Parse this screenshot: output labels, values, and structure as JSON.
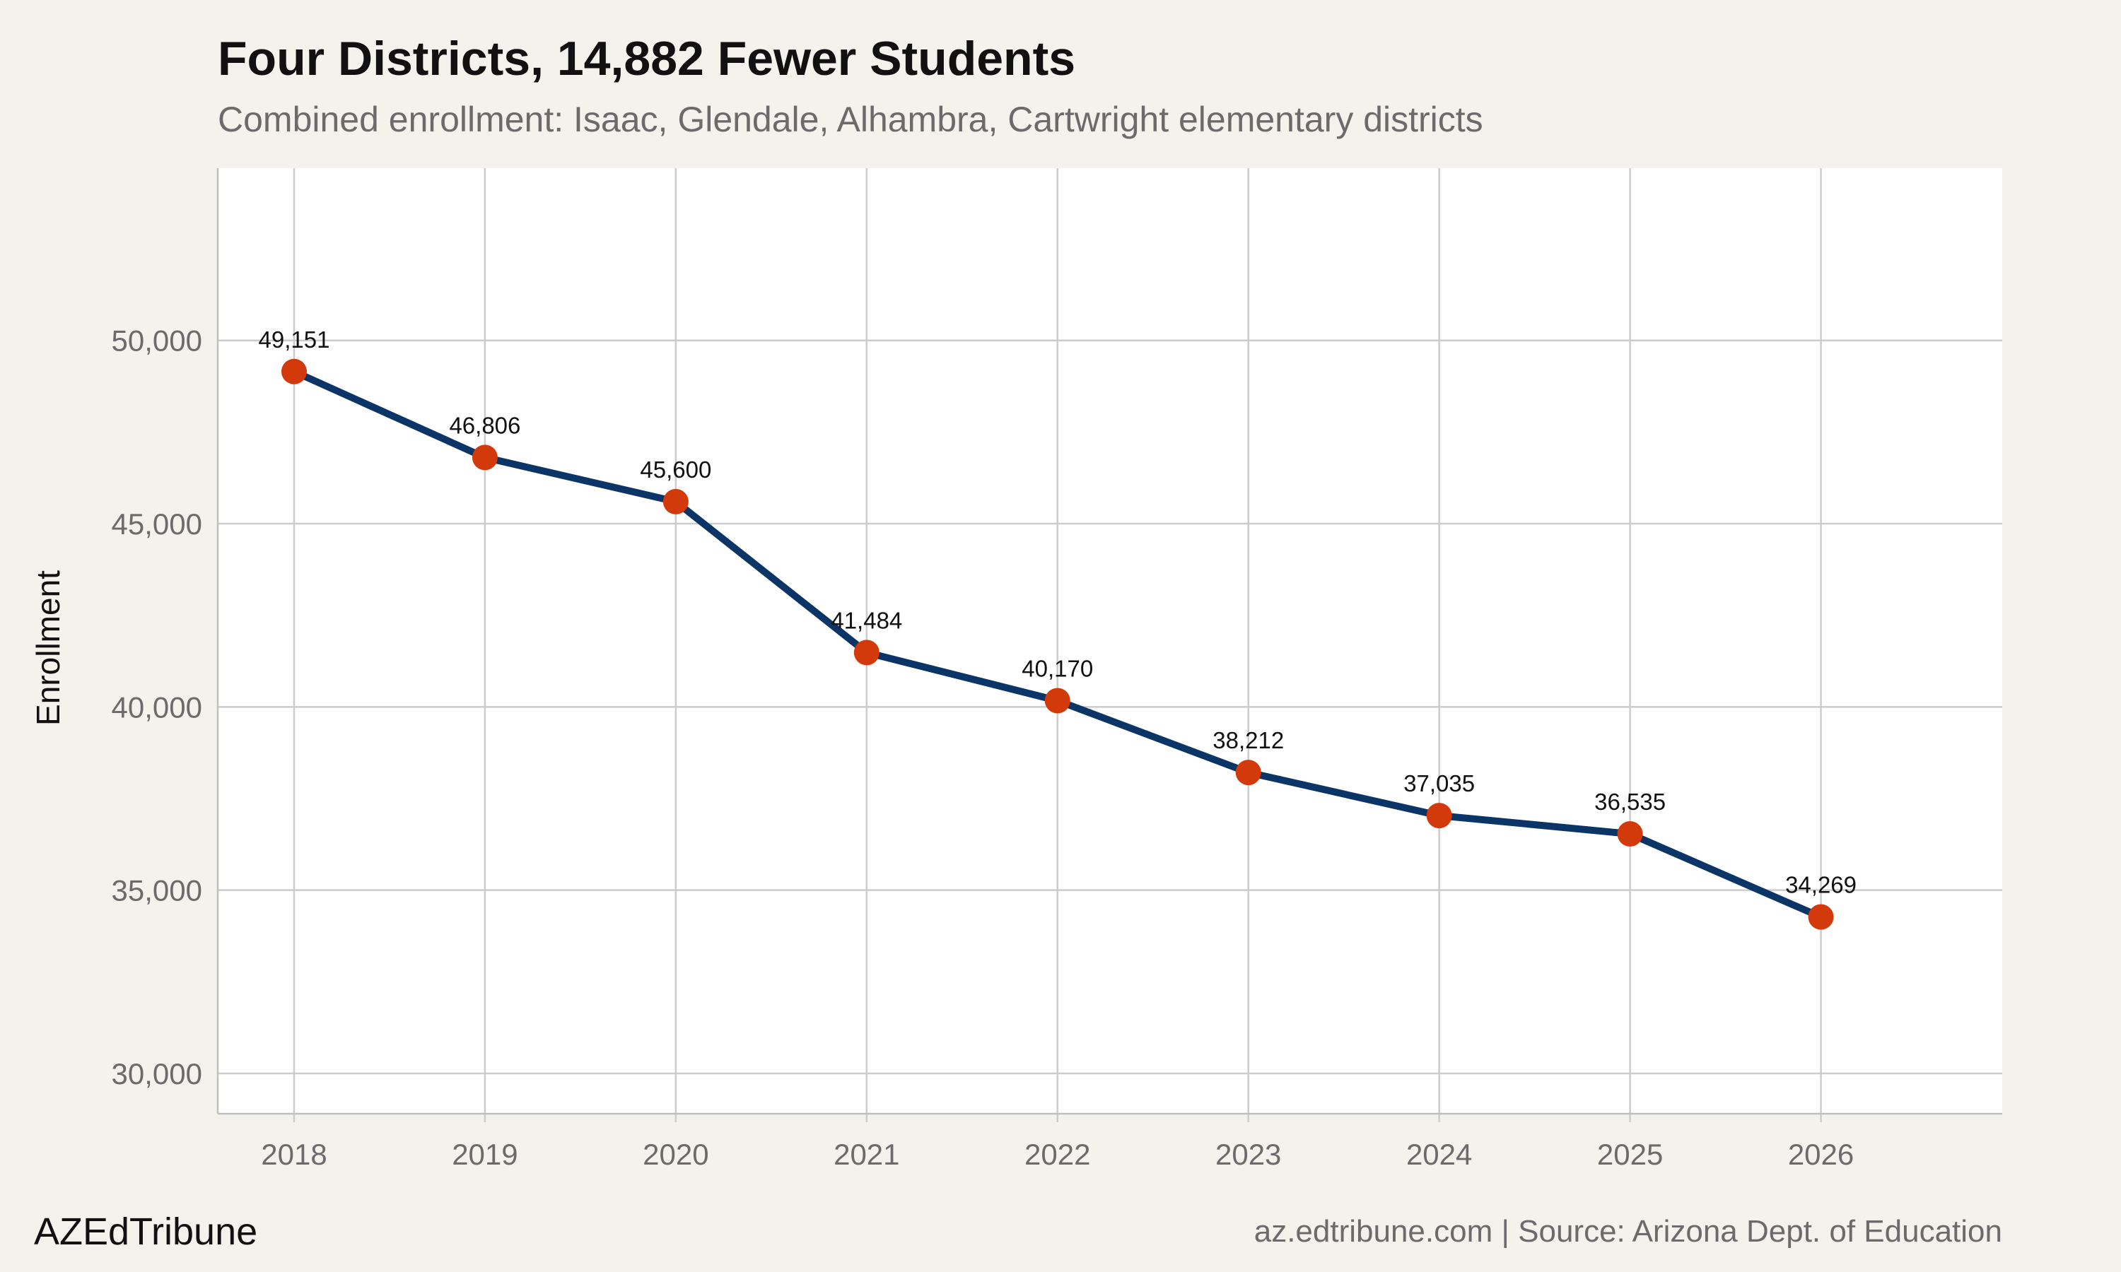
{
  "header": {
    "title": "Four Districts, 14,882 Fewer Students",
    "subtitle": "Combined enrollment: Isaac, Glendale, Alhambra, Cartwright elementary districts"
  },
  "footer": {
    "brand": "AZEdTribune",
    "source": "az.edtribune.com | Source: Arizona Dept. of Education"
  },
  "colors": {
    "background": "#f4f2ed",
    "plot_background": "#ffffff",
    "grid": "#cccccc",
    "line": "#0b3566",
    "marker": "#d23a0c"
  },
  "chart_data": {
    "type": "line",
    "x": [
      2018,
      2019,
      2020,
      2021,
      2022,
      2023,
      2024,
      2025,
      2026
    ],
    "x_tick_labels": [
      "2018",
      "2019",
      "2020",
      "2021",
      "2022",
      "2023",
      "2024",
      "2025",
      "2026"
    ],
    "series": [
      {
        "values": [
          49151,
          46806,
          45600,
          41484,
          40170,
          38212,
          37035,
          36535,
          34269
        ],
        "labels": [
          "49,151",
          "46,806",
          "45,600",
          "41,484",
          "40,170",
          "38,212",
          "37,035",
          "36,535",
          "34,269"
        ]
      }
    ],
    "ylabel": "Enrollment",
    "xlabel": "",
    "yticks": [
      30000,
      35000,
      40000,
      45000,
      50000
    ],
    "y_tick_labels": [
      "30,000",
      "35,000",
      "40,000",
      "45,000",
      "50,000"
    ],
    "ylim": [
      28900,
      54700
    ],
    "xlim": [
      2017.6,
      2026.95
    ],
    "grid": true,
    "legend": "none"
  }
}
